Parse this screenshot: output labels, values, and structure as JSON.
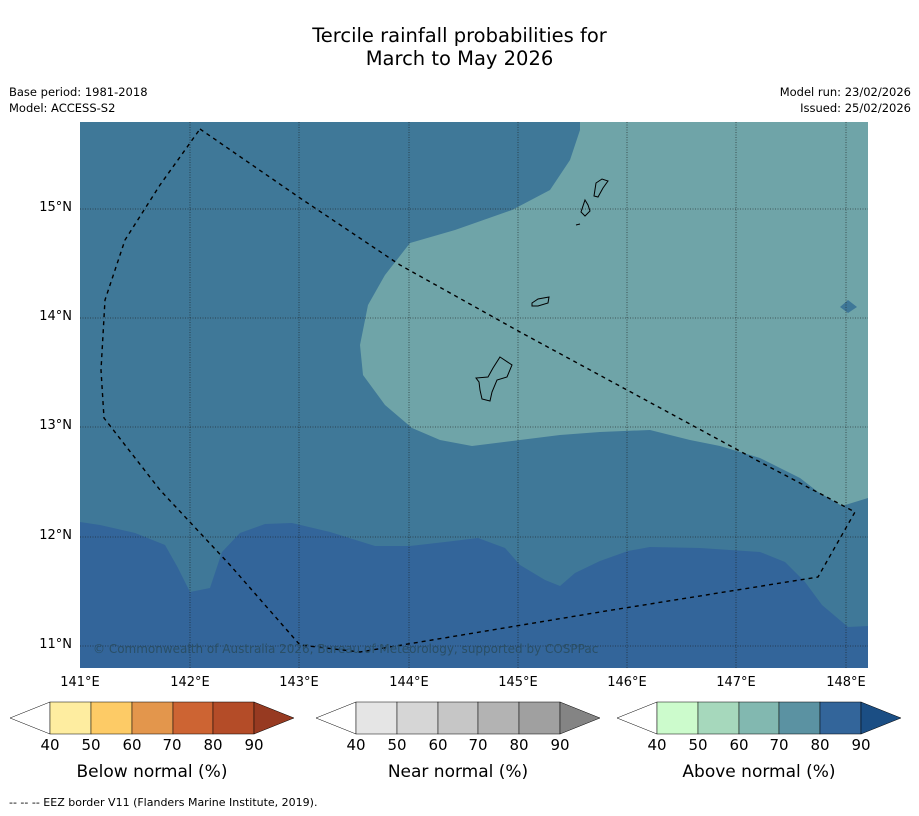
{
  "title": {
    "line1": "Tercile rainfall probabilities for",
    "line2": "March to May 2026"
  },
  "meta": {
    "base_period": "Base period: 1981-2018",
    "model": "Model: ACCESS-S2",
    "model_run": "Model run: 23/02/2026",
    "issued": "Issued: 25/02/2026"
  },
  "map": {
    "latitude_labels": [
      "15°N",
      "14°N",
      "13°N",
      "12°N",
      "11°N"
    ],
    "longitude_labels": [
      "141°E",
      "142°E",
      "143°E",
      "144°E",
      "145°E",
      "146°E",
      "147°E",
      "148°E"
    ],
    "copyright": "© Commonwealth of Australia 2026, Bureau of Meteorology, supported by COSPPac",
    "colors": {
      "above_80_90": "#33659a",
      "above_70_80": "#3f7898",
      "above_60_70": "#6fa4a8",
      "coastline": "#000000"
    }
  },
  "colorbars": [
    {
      "label": "Below normal (%)",
      "ticks": [
        "40",
        "50",
        "60",
        "70",
        "80",
        "90"
      ],
      "colors": [
        "#ffffff",
        "#feeda0",
        "#fdcb66",
        "#e3964c",
        "#cd6433",
        "#b44c28",
        "#973a21"
      ]
    },
    {
      "label": "Near normal (%)",
      "ticks": [
        "40",
        "50",
        "60",
        "70",
        "80",
        "90"
      ],
      "colors": [
        "#ffffff",
        "#e5e5e5",
        "#d6d6d6",
        "#c6c6c6",
        "#b3b3b3",
        "#a0a0a0",
        "#848484"
      ]
    },
    {
      "label": "Above normal (%)",
      "ticks": [
        "40",
        "50",
        "60",
        "70",
        "80",
        "90"
      ],
      "colors": [
        "#ffffff",
        "#ccfbcc",
        "#a6d8bc",
        "#82b8b0",
        "#5b92a2",
        "#33659a",
        "#1b4e84"
      ]
    }
  ],
  "footnote": "--  --  -- EEZ border V11 (Flanders Marine Institute, 2019)."
}
